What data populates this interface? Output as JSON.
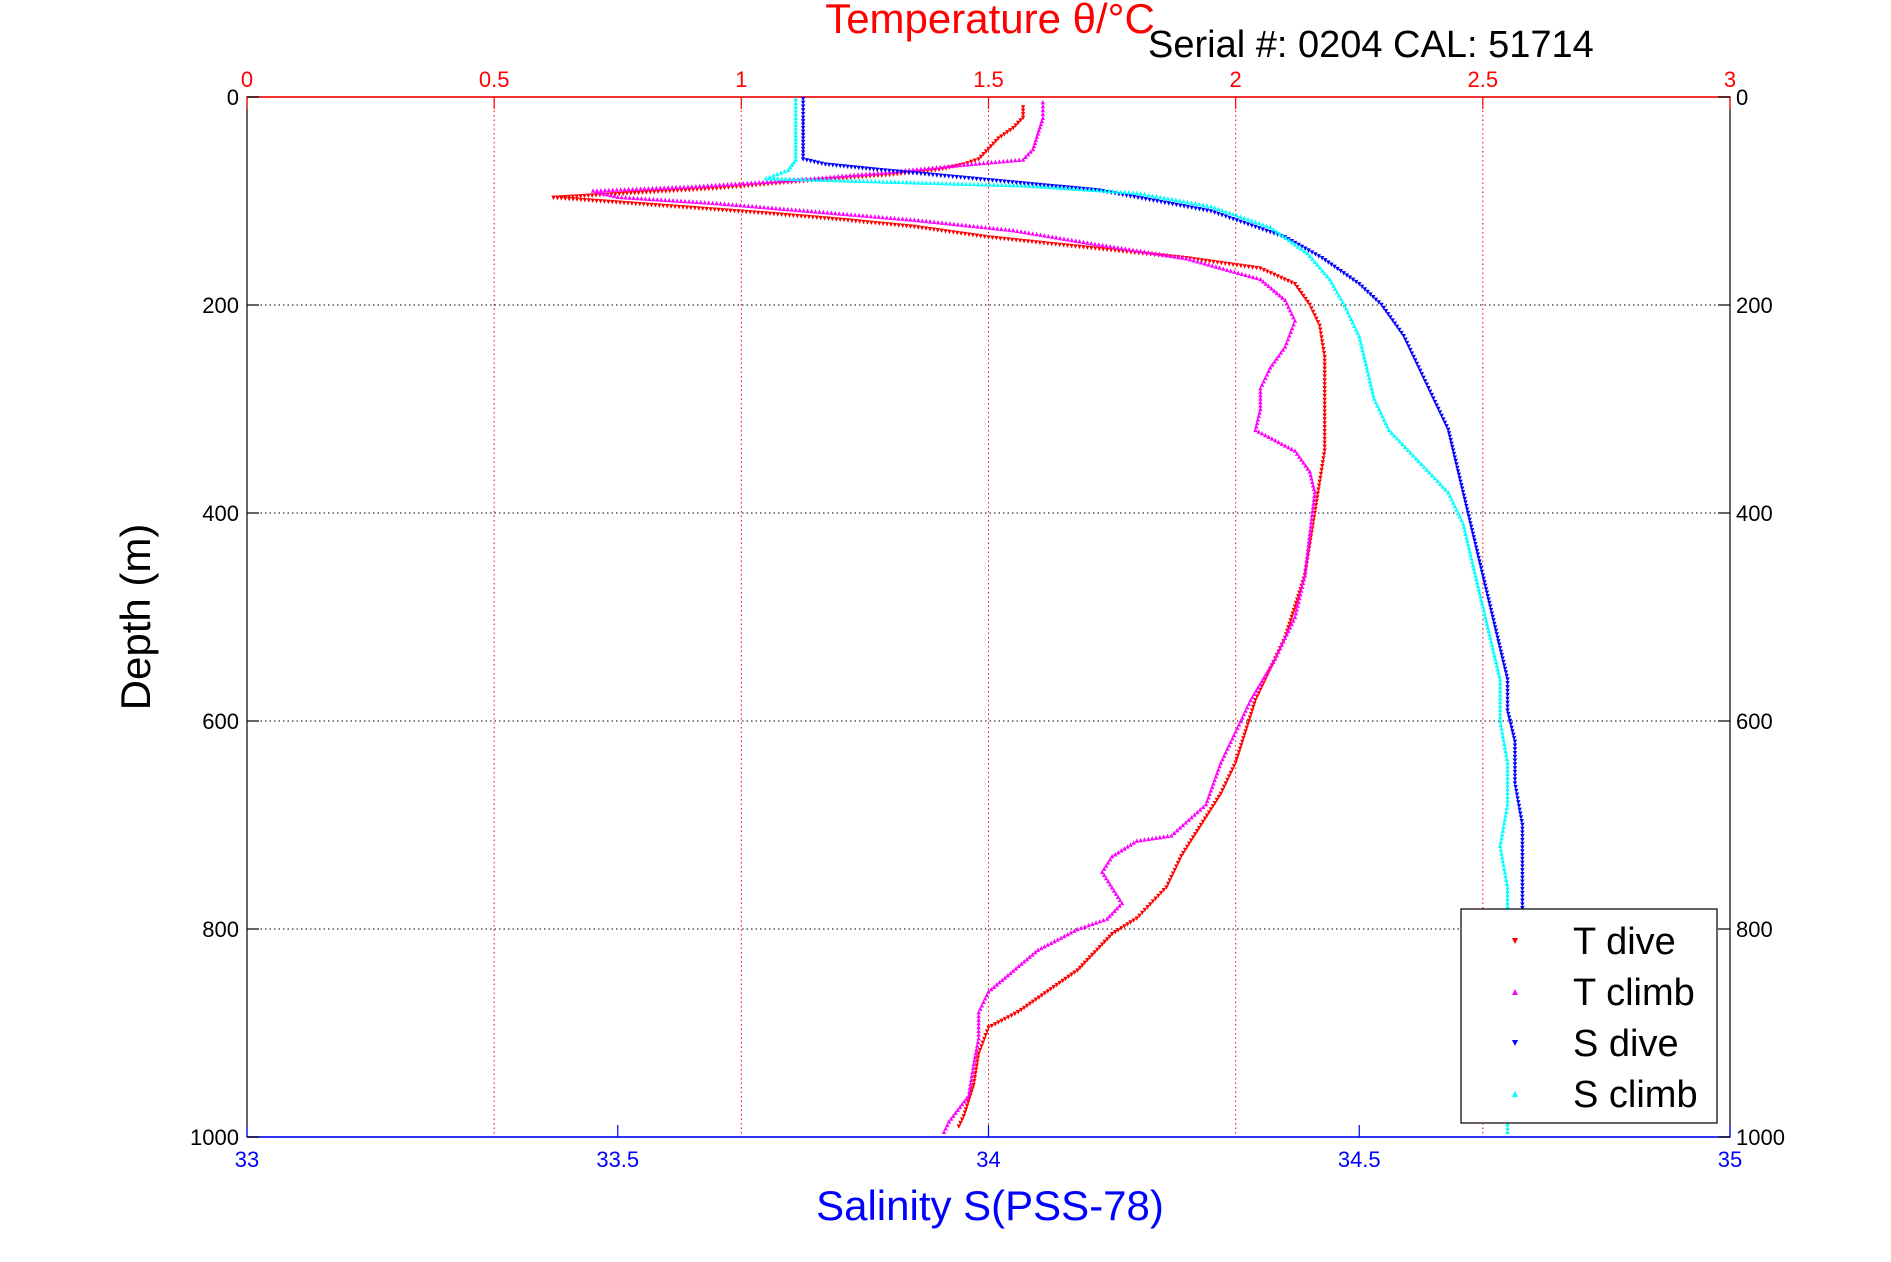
{
  "header": {
    "serial_text": "Serial #: 0204   CAL: 51714"
  },
  "chart_data": {
    "type": "scatter",
    "title": "Temperature θ/°C",
    "xlabel": "Salinity S(PSS-78)",
    "ylabel": "Depth (m)",
    "x2lim": [
      0,
      3
    ],
    "x2ticks": [
      "0",
      "0.5",
      "1",
      "1.5",
      "2",
      "2.5",
      "3"
    ],
    "x1lim": [
      33,
      35
    ],
    "x1ticks": [
      "33",
      "33.5",
      "34",
      "34.5",
      "35"
    ],
    "ylim": [
      0,
      1000
    ],
    "yticks": [
      "0",
      "200",
      "400",
      "600",
      "800",
      "1000"
    ],
    "y_reversed": true,
    "grid": true,
    "legend_position": "bottom-right",
    "colors": {
      "temperature_axis": "#ff0000",
      "salinity_axis": "#0000ff"
    },
    "series": [
      {
        "name": "T dive",
        "axis": "temperature",
        "color": "#ff0000",
        "marker": "triangle-down",
        "points": [
          [
            1.57,
            10
          ],
          [
            1.57,
            20
          ],
          [
            1.55,
            30
          ],
          [
            1.52,
            40
          ],
          [
            1.5,
            50
          ],
          [
            1.48,
            60
          ],
          [
            1.45,
            65
          ],
          [
            1.4,
            70
          ],
          [
            1.3,
            75
          ],
          [
            1.15,
            80
          ],
          [
            0.95,
            88
          ],
          [
            0.8,
            92
          ],
          [
            0.62,
            97
          ],
          [
            0.85,
            105
          ],
          [
            1.05,
            112
          ],
          [
            1.2,
            118
          ],
          [
            1.35,
            125
          ],
          [
            1.5,
            135
          ],
          [
            1.7,
            145
          ],
          [
            1.9,
            155
          ],
          [
            2.05,
            165
          ],
          [
            2.12,
            180
          ],
          [
            2.15,
            200
          ],
          [
            2.17,
            220
          ],
          [
            2.18,
            250
          ],
          [
            2.18,
            280
          ],
          [
            2.18,
            310
          ],
          [
            2.18,
            340
          ],
          [
            2.17,
            370
          ],
          [
            2.16,
            400
          ],
          [
            2.15,
            430
          ],
          [
            2.14,
            460
          ],
          [
            2.12,
            490
          ],
          [
            2.1,
            520
          ],
          [
            2.07,
            550
          ],
          [
            2.04,
            580
          ],
          [
            2.02,
            610
          ],
          [
            2.0,
            640
          ],
          [
            1.97,
            670
          ],
          [
            1.93,
            700
          ],
          [
            1.89,
            730
          ],
          [
            1.86,
            760
          ],
          [
            1.8,
            790
          ],
          [
            1.75,
            805
          ],
          [
            1.72,
            820
          ],
          [
            1.68,
            840
          ],
          [
            1.62,
            860
          ],
          [
            1.56,
            880
          ],
          [
            1.5,
            895
          ],
          [
            1.48,
            920
          ],
          [
            1.47,
            950
          ],
          [
            1.45,
            980
          ],
          [
            1.44,
            990
          ]
        ]
      },
      {
        "name": "T climb",
        "axis": "temperature",
        "color": "#ff00ff",
        "marker": "triangle-up",
        "points": [
          [
            1.61,
            5
          ],
          [
            1.61,
            20
          ],
          [
            1.6,
            35
          ],
          [
            1.59,
            50
          ],
          [
            1.57,
            60
          ],
          [
            1.45,
            65
          ],
          [
            1.3,
            72
          ],
          [
            1.1,
            80
          ],
          [
            0.9,
            86
          ],
          [
            0.7,
            90
          ],
          [
            0.75,
            96
          ],
          [
            0.95,
            102
          ],
          [
            1.15,
            110
          ],
          [
            1.35,
            118
          ],
          [
            1.55,
            128
          ],
          [
            1.7,
            140
          ],
          [
            1.9,
            155
          ],
          [
            2.05,
            175
          ],
          [
            2.1,
            195
          ],
          [
            2.12,
            215
          ],
          [
            2.1,
            240
          ],
          [
            2.07,
            260
          ],
          [
            2.05,
            280
          ],
          [
            2.05,
            300
          ],
          [
            2.04,
            320
          ],
          [
            2.08,
            330
          ],
          [
            2.12,
            340
          ],
          [
            2.15,
            360
          ],
          [
            2.16,
            380
          ],
          [
            2.15,
            420
          ],
          [
            2.14,
            460
          ],
          [
            2.12,
            500
          ],
          [
            2.08,
            540
          ],
          [
            2.03,
            580
          ],
          [
            2.0,
            610
          ],
          [
            1.97,
            640
          ],
          [
            1.94,
            680
          ],
          [
            1.87,
            710
          ],
          [
            1.8,
            715
          ],
          [
            1.75,
            730
          ],
          [
            1.73,
            745
          ],
          [
            1.75,
            760
          ],
          [
            1.77,
            775
          ],
          [
            1.74,
            790
          ],
          [
            1.68,
            800
          ],
          [
            1.6,
            820
          ],
          [
            1.55,
            840
          ],
          [
            1.5,
            860
          ],
          [
            1.48,
            880
          ],
          [
            1.48,
            905
          ],
          [
            1.47,
            930
          ],
          [
            1.46,
            960
          ],
          [
            1.42,
            985
          ],
          [
            1.41,
            995
          ]
        ]
      },
      {
        "name": "S dive",
        "axis": "salinity",
        "color": "#0000ff",
        "marker": "triangle-down",
        "points": [
          [
            33.75,
            2
          ],
          [
            33.75,
            20
          ],
          [
            33.75,
            40
          ],
          [
            33.75,
            60
          ],
          [
            33.78,
            65
          ],
          [
            33.85,
            70
          ],
          [
            34.0,
            80
          ],
          [
            34.15,
            90
          ],
          [
            34.3,
            110
          ],
          [
            34.4,
            135
          ],
          [
            34.45,
            155
          ],
          [
            34.5,
            180
          ],
          [
            34.53,
            200
          ],
          [
            34.56,
            230
          ],
          [
            34.58,
            260
          ],
          [
            34.6,
            290
          ],
          [
            34.62,
            320
          ],
          [
            34.63,
            350
          ],
          [
            34.64,
            380
          ],
          [
            34.65,
            410
          ],
          [
            34.66,
            440
          ],
          [
            34.67,
            470
          ],
          [
            34.68,
            500
          ],
          [
            34.69,
            530
          ],
          [
            34.7,
            560
          ],
          [
            34.7,
            590
          ],
          [
            34.71,
            620
          ],
          [
            34.71,
            660
          ],
          [
            34.72,
            700
          ],
          [
            34.72,
            740
          ],
          [
            34.72,
            780
          ]
        ]
      },
      {
        "name": "S climb",
        "axis": "salinity",
        "color": "#00ffff",
        "marker": "triangle-up",
        "points": [
          [
            33.74,
            2
          ],
          [
            33.74,
            20
          ],
          [
            33.74,
            40
          ],
          [
            33.74,
            60
          ],
          [
            33.73,
            70
          ],
          [
            33.7,
            78
          ],
          [
            33.9,
            82
          ],
          [
            34.05,
            85
          ],
          [
            34.2,
            92
          ],
          [
            34.3,
            105
          ],
          [
            34.38,
            125
          ],
          [
            34.43,
            150
          ],
          [
            34.46,
            175
          ],
          [
            34.48,
            200
          ],
          [
            34.5,
            230
          ],
          [
            34.51,
            260
          ],
          [
            34.52,
            290
          ],
          [
            34.54,
            320
          ],
          [
            34.58,
            350
          ],
          [
            34.62,
            380
          ],
          [
            34.64,
            410
          ],
          [
            34.65,
            440
          ],
          [
            34.66,
            470
          ],
          [
            34.67,
            500
          ],
          [
            34.68,
            530
          ],
          [
            34.69,
            560
          ],
          [
            34.69,
            600
          ],
          [
            34.7,
            640
          ],
          [
            34.7,
            680
          ],
          [
            34.69,
            720
          ],
          [
            34.7,
            760
          ],
          [
            34.7,
            800
          ],
          [
            34.7,
            850
          ],
          [
            34.7,
            900
          ],
          [
            34.7,
            950
          ],
          [
            34.7,
            995
          ]
        ]
      }
    ]
  }
}
